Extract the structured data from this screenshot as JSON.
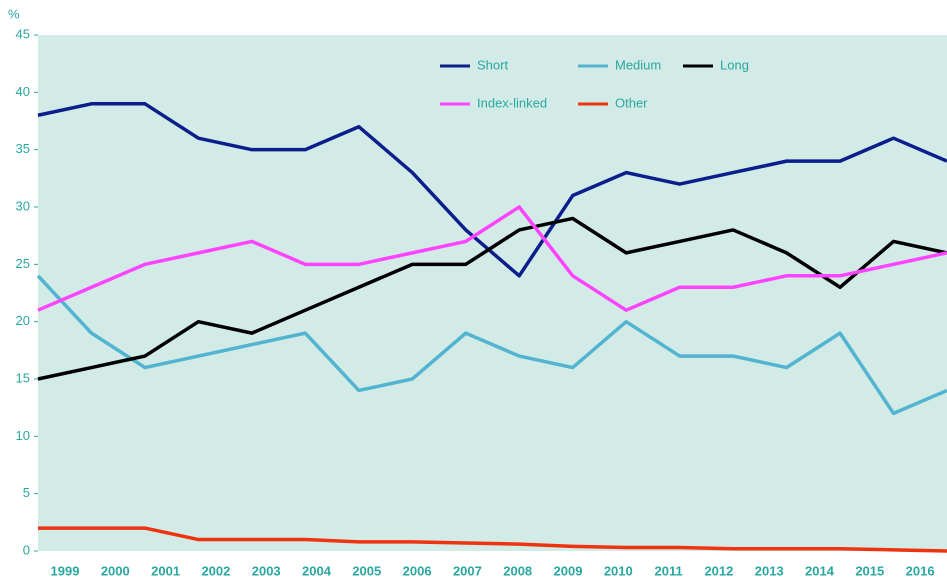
{
  "chart_data": {
    "type": "line",
    "y_label": "%",
    "categories": [
      "1999",
      "2000",
      "2001",
      "2002",
      "2003",
      "2004",
      "2005",
      "2006",
      "2007",
      "2008",
      "2009",
      "2010",
      "2011",
      "2012",
      "2013",
      "2014",
      "2015",
      "2016"
    ],
    "series": [
      {
        "name": "Short",
        "color": "#0b1e8c",
        "values": [
          38,
          39,
          39,
          36,
          35,
          35,
          37,
          33,
          28,
          24,
          31,
          33,
          32,
          33,
          34,
          34,
          36,
          34
        ]
      },
      {
        "name": "Medium",
        "color": "#52b4d0",
        "values": [
          24,
          19,
          16,
          17,
          18,
          19,
          14,
          15,
          19,
          17,
          16,
          20,
          17,
          17,
          16,
          19,
          12,
          14
        ]
      },
      {
        "name": "Long",
        "color": "#000000",
        "values": [
          15,
          16,
          17,
          20,
          19,
          21,
          23,
          25,
          25,
          28,
          29,
          26,
          27,
          28,
          26,
          23,
          27,
          26
        ]
      },
      {
        "name": "Index-linked",
        "color": "#ff44ff",
        "values": [
          21,
          23,
          25,
          26,
          27,
          25,
          25,
          26,
          27,
          30,
          24,
          21,
          23,
          23,
          24,
          24,
          25,
          26
        ]
      },
      {
        "name": "Other",
        "color": "#ee3311",
        "values": [
          2,
          2,
          2,
          1,
          1,
          1,
          0.8,
          0.8,
          0.7,
          0.6,
          0.4,
          0.3,
          0.3,
          0.2,
          0.2,
          0.2,
          0.1,
          0
        ]
      }
    ],
    "ylim": [
      0,
      45
    ],
    "yticks": [
      0,
      5,
      10,
      15,
      20,
      25,
      30,
      35,
      40,
      45
    ],
    "background": "#d2ebe6",
    "tick_color": "#2aa7a0"
  }
}
